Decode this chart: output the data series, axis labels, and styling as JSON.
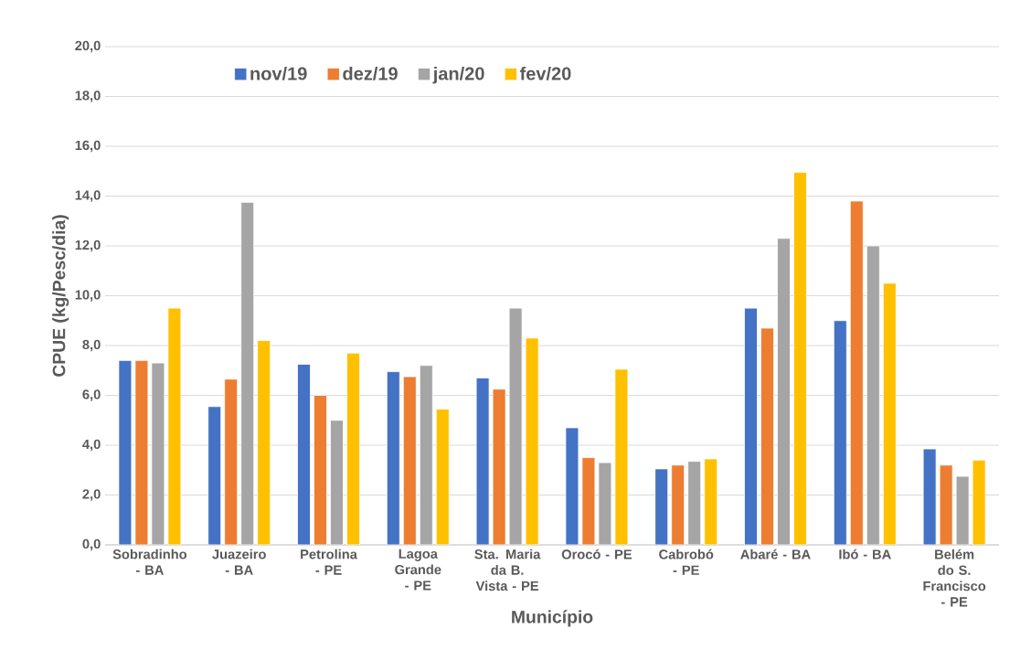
{
  "chart_data": {
    "type": "bar",
    "xlabel": "Município",
    "ylabel": "CPUE (kg/Pesc/dia)",
    "categories": [
      "Sobradinho - BA",
      "Juazeiro - BA",
      "Petrolina - PE",
      "Lagoa Grande - PE",
      "Sta. Maria da B. Vista - PE",
      "Orocó - PE",
      "Cabrobó - PE",
      "Abaré - BA",
      "Ibó - BA",
      "Belém do S. Francisco - PE"
    ],
    "series": [
      {
        "name": "nov/19",
        "color": "#4472c4",
        "values": [
          7.4,
          5.55,
          7.25,
          6.95,
          6.7,
          4.7,
          3.05,
          9.5,
          9.0,
          3.85
        ]
      },
      {
        "name": "dez/19",
        "color": "#ed7d31",
        "values": [
          7.4,
          6.65,
          6.0,
          6.75,
          6.25,
          3.5,
          3.2,
          8.7,
          13.8,
          3.2
        ]
      },
      {
        "name": "jan/20",
        "color": "#a5a5a5",
        "values": [
          7.3,
          13.75,
          5.0,
          7.2,
          9.5,
          3.3,
          3.35,
          12.3,
          12.0,
          2.75
        ]
      },
      {
        "name": "fev/20",
        "color": "#ffc000",
        "values": [
          9.5,
          8.2,
          7.7,
          5.45,
          8.3,
          7.05,
          3.45,
          14.95,
          10.5,
          3.4
        ]
      }
    ],
    "ylim": [
      0,
      20
    ],
    "yticks": [
      {
        "value": 0,
        "label": "0,0"
      },
      {
        "value": 2,
        "label": "2,0"
      },
      {
        "value": 4,
        "label": "4,0"
      },
      {
        "value": 6,
        "label": "6,0"
      },
      {
        "value": 8,
        "label": "8,0"
      },
      {
        "value": 10,
        "label": "10,0"
      },
      {
        "value": 12,
        "label": "12,0"
      },
      {
        "value": 14,
        "label": "14,0"
      },
      {
        "value": 16,
        "label": "16,0"
      },
      {
        "value": 18,
        "label": "18,0"
      },
      {
        "value": 20,
        "label": "20,0"
      }
    ],
    "grid": "y",
    "legend": "top"
  }
}
